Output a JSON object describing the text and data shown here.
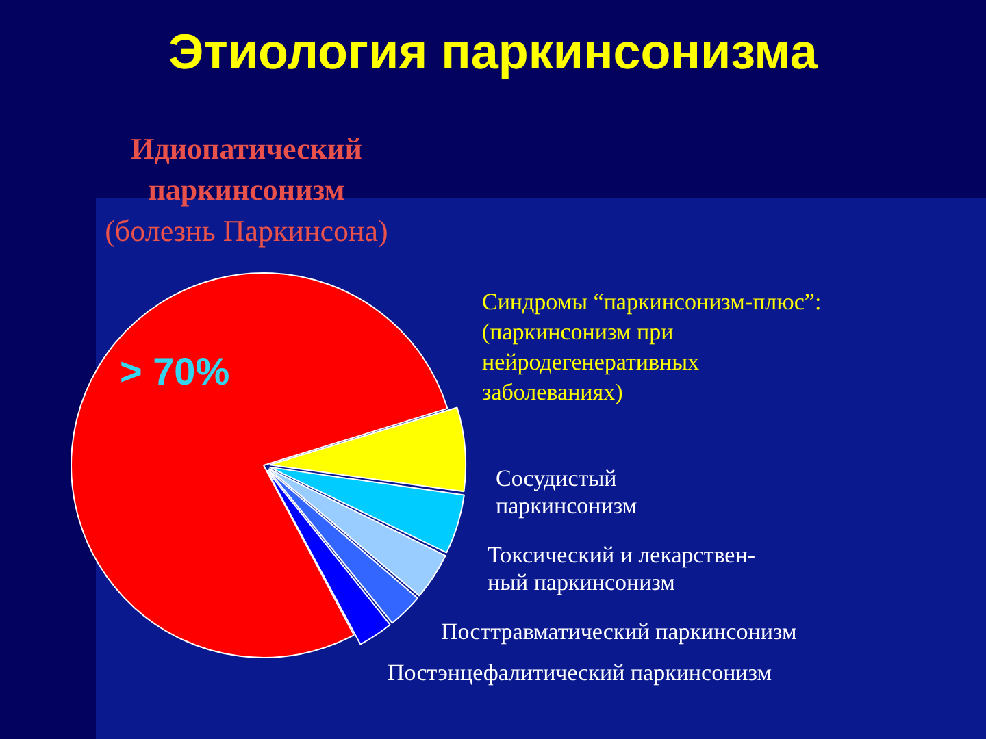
{
  "chart_data": {
    "type": "pie",
    "title": "Этиология паркинсонизма",
    "categories": [
      "Идиопатический\nпаркинсонизм\n(болезнь Паркинсона)",
      "Синдромы “паркинсонизм-плюс”:\n(паркинсонизм при\nнейродегенеративных\nзаболеваниях)",
      "Сосудистый\nпаркинсонизм",
      "Токсический и лекарствен-\nный паркинсонизм",
      "Посттравматический паркинсонизм",
      "Постэнцефалитический паркинсонизм"
    ],
    "values": [
      78,
      7,
      5,
      4,
      3,
      3
    ],
    "colors": [
      "#ff0000",
      "#ffff00",
      "#00ccff",
      "#99ccff",
      "#3366ff",
      "#0000ff"
    ],
    "value_labels": [
      "> 70%",
      null,
      null,
      null,
      null,
      null
    ]
  }
}
